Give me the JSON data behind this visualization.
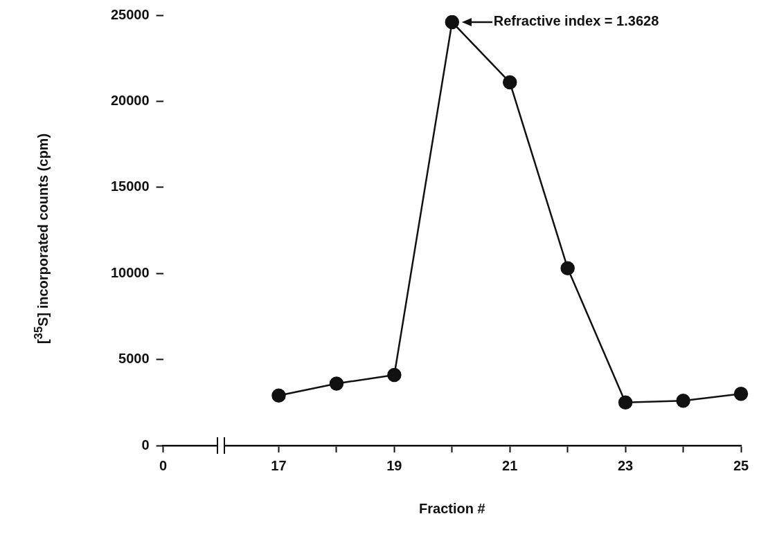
{
  "chart_data": {
    "type": "line",
    "xlabel": "Fraction #",
    "ylabel": "[$^{35}$S] incorporated counts (cpm)",
    "categories": [
      "0",
      null,
      "17",
      null,
      "19",
      null,
      "21",
      null,
      "23",
      null,
      "25"
    ],
    "series": [
      {
        "color": "#111111",
        "values": [
          null,
          null,
          2900,
          3600,
          4100,
          24600,
          21100,
          10300,
          2500,
          2600,
          3000
        ]
      }
    ],
    "ylim": [
      0,
      25000
    ],
    "yticks": [
      0,
      5000,
      10000,
      15000,
      20000,
      25000
    ],
    "grid": false,
    "legend": false,
    "marker": "circle",
    "line_style": "solid",
    "annotations": [
      "Refractive index = 1.3628"
    ]
  }
}
